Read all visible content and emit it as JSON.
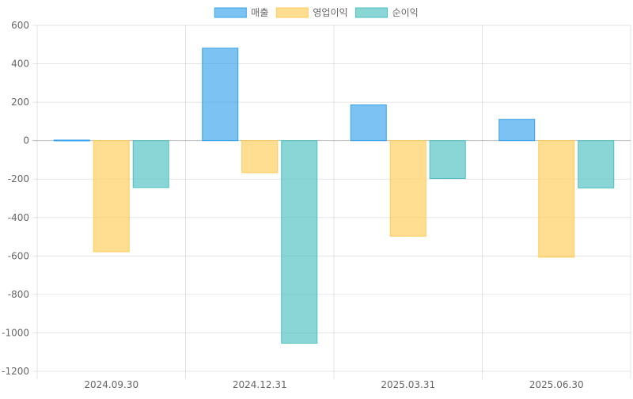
{
  "chart_data": {
    "type": "bar",
    "categories": [
      "2024.09.30",
      "2024.12.31",
      "2025.03.31",
      "2025.06.30"
    ],
    "series": [
      {
        "name": "매출",
        "values": [
          3,
          481,
          186,
          111
        ],
        "color": "#36a2eb"
      },
      {
        "name": "영업이익",
        "values": [
          -578,
          -167,
          -497,
          -606
        ],
        "color": "#ffcd56"
      },
      {
        "name": "순이익",
        "values": [
          -244,
          -1054,
          -197,
          -246
        ],
        "color": "#4bc0c0"
      }
    ],
    "ylim": [
      -1200,
      600
    ],
    "yticks": [
      600,
      400,
      200,
      0,
      -200,
      -400,
      -600,
      -800,
      -1000,
      -1200
    ],
    "grid": true,
    "legend_position": "top"
  }
}
